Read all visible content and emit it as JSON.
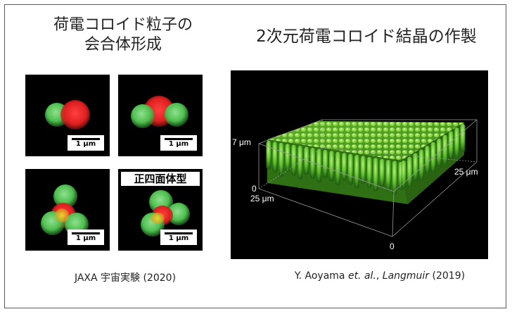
{
  "left": {
    "title_line1": "荷電コロイド粒子の",
    "title_line2": "会合体形成",
    "scale_label": "1 μm",
    "tetrahedral_label": "正四面体型",
    "caption": "JAXA 宇宙実験 (2020)"
  },
  "right": {
    "title": "2次元荷電コロイド結晶の作製",
    "axis": {
      "z_max": "7 μm",
      "z_min": "0",
      "x_label": "25 μm",
      "y_label": "25 μm",
      "origin": "0"
    },
    "caption_author": "Y. Aoyama ",
    "caption_etal": "et. al.",
    "caption_sep": ", ",
    "caption_journal": "Langmuir",
    "caption_year": " (2019)"
  },
  "colors": {
    "green_particle": "#4fbf4f",
    "red_particle": "#e02020",
    "background": "#000000"
  }
}
